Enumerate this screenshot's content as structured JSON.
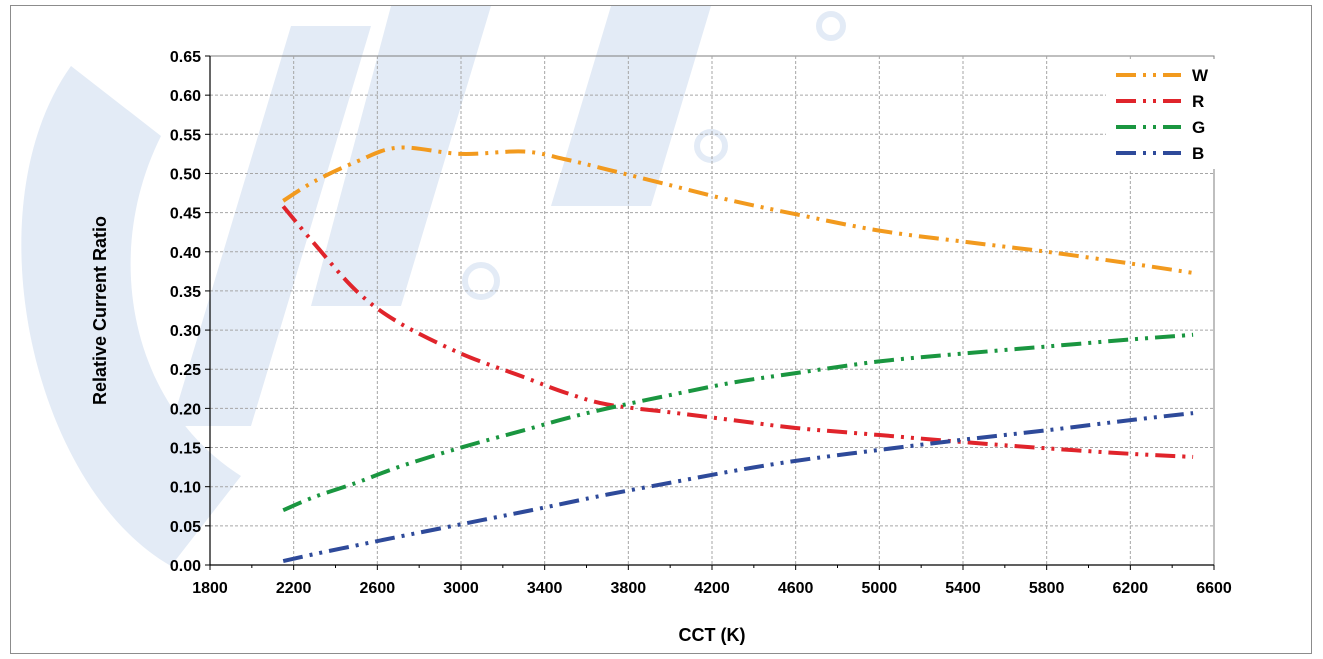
{
  "colors": {
    "W": "#f29a1e",
    "R": "#e0242b",
    "G": "#1a9640",
    "B": "#2e4a9a",
    "grid": "#a6a6a6",
    "watermark": "#e3ebf6"
  },
  "chart_data": {
    "type": "line",
    "xlabel": "CCT (K)",
    "ylabel": "Relative Current Ratio",
    "xlim": [
      1800,
      6600
    ],
    "ylim": [
      0,
      0.65
    ],
    "x_ticks": [
      "1800",
      "2200",
      "2600",
      "3000",
      "3400",
      "3800",
      "4200",
      "4600",
      "5000",
      "5400",
      "5800",
      "6200",
      "6600"
    ],
    "y_ticks": [
      "0.00",
      "0.05",
      "0.10",
      "0.15",
      "0.20",
      "0.25",
      "0.30",
      "0.35",
      "0.40",
      "0.45",
      "0.50",
      "0.55",
      "0.60",
      "0.65"
    ],
    "grid": true,
    "legend_position": "top-right",
    "x": [
      2150,
      2300,
      2500,
      2700,
      3000,
      3300,
      3500,
      3700,
      4000,
      4300,
      4600,
      5000,
      5400,
      5800,
      6200,
      6500
    ],
    "series": [
      {
        "name": "W",
        "key": "W",
        "values": [
          0.465,
          0.49,
          0.515,
          0.533,
          0.525,
          0.528,
          0.518,
          0.505,
          0.485,
          0.465,
          0.448,
          0.427,
          0.413,
          0.4,
          0.385,
          0.373
        ]
      },
      {
        "name": "R",
        "key": "R",
        "values": [
          0.458,
          0.41,
          0.35,
          0.31,
          0.27,
          0.24,
          0.22,
          0.205,
          0.195,
          0.185,
          0.175,
          0.166,
          0.157,
          0.149,
          0.142,
          0.138
        ]
      },
      {
        "name": "G",
        "key": "G",
        "values": [
          0.07,
          0.087,
          0.105,
          0.125,
          0.15,
          0.172,
          0.187,
          0.2,
          0.217,
          0.233,
          0.245,
          0.26,
          0.27,
          0.279,
          0.288,
          0.294
        ]
      },
      {
        "name": "B",
        "key": "B",
        "values": [
          0.005,
          0.014,
          0.025,
          0.036,
          0.052,
          0.068,
          0.079,
          0.09,
          0.105,
          0.12,
          0.133,
          0.147,
          0.16,
          0.172,
          0.185,
          0.194
        ]
      }
    ]
  }
}
